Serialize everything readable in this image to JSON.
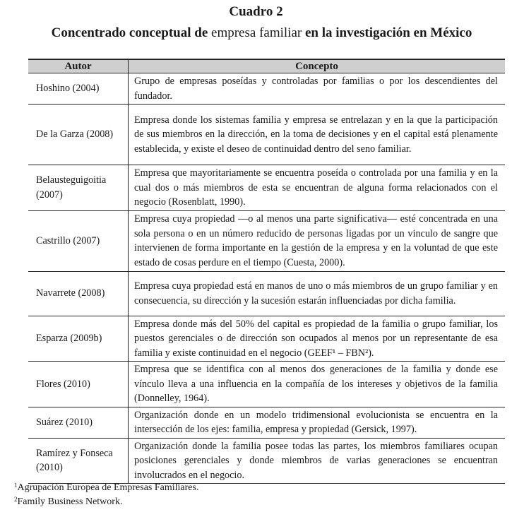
{
  "title": "Cuadro 2",
  "subtitle": {
    "part1": "Concentrado conceptual de ",
    "part2": "empresa familiar",
    "part3": " en la investigación en México"
  },
  "table": {
    "headers": [
      "Autor",
      "Concepto"
    ],
    "rows": [
      {
        "autor": "Hoshino (2004)",
        "concepto": "Grupo de empresas poseídas y controladas por familias o por los descendientes del fundador."
      },
      {
        "autor": "De la Garza (2008)",
        "concepto": "Empresa donde los sistemas familia y empresa se entrelazan y en la que la participación de sus miembros en la dirección, en la toma de decisiones y en el capital está plenamente establecida, y existe el deseo de continuidad dentro del seno familiar."
      },
      {
        "autor": "Belausteguigoitia (2007)",
        "concepto": "Empresa que mayoritariamente se encuentra poseída o controlada por una familia y en la cual dos o más miembros de esta se encuentran de alguna forma relacionados con el negocio (Rosenblatt, 1990)."
      },
      {
        "autor": "Castrillo (2007)",
        "concepto": "Empresa cuya propiedad —o al menos una parte significativa— esté concentrada en una sola persona o en un número reducido de personas ligadas por un vinculo de sangre que intervienen de forma importante en la gestión de la empresa y en la voluntad de que este estado de cosas perdure en el tiempo (Cuesta, 2000)."
      },
      {
        "autor": "Navarrete (2008)",
        "concepto": "Empresa cuya propiedad está en manos de uno o más miembros de un grupo familiar y en consecuencia, su dirección y la sucesión estarán influenciadas por dicha familia."
      },
      {
        "autor": "Esparza (2009b)",
        "concepto": "Empresa donde más del 50% del capital es propiedad de la familia o grupo familiar, los puestos gerenciales o de dirección son ocupados al menos por un representante de esa familia y existe continuidad en el negocio (GEEF¹ – FBN²)."
      },
      {
        "autor": "Flores (2010)",
        "concepto": "Empresa que se identifica con al menos dos generaciones de la familia y donde ese vínculo lleva a una influencia en la compañía de los intereses y objetivos de la familia (Donnelley, 1964)."
      },
      {
        "autor": "Suárez (2010)",
        "concepto": "Organización donde en un modelo tridimensional evolucionista se encuentra en la intersección de los ejes: familia, empresa y propiedad (Gersick, 1997)."
      },
      {
        "autor": "Ramírez y Fonseca (2010)",
        "concepto": "Organización donde la familia posee todas las partes, los miembros familiares ocupan posiciones gerenciales y donde miembros de varias generaciones se encuentran involucrados en el negocio."
      }
    ]
  },
  "footnotes": [
    {
      "mark": "1",
      "text": "Agrupación Europea de Empresas Familiares."
    },
    {
      "mark": "2",
      "text": "Family Business Network."
    }
  ]
}
